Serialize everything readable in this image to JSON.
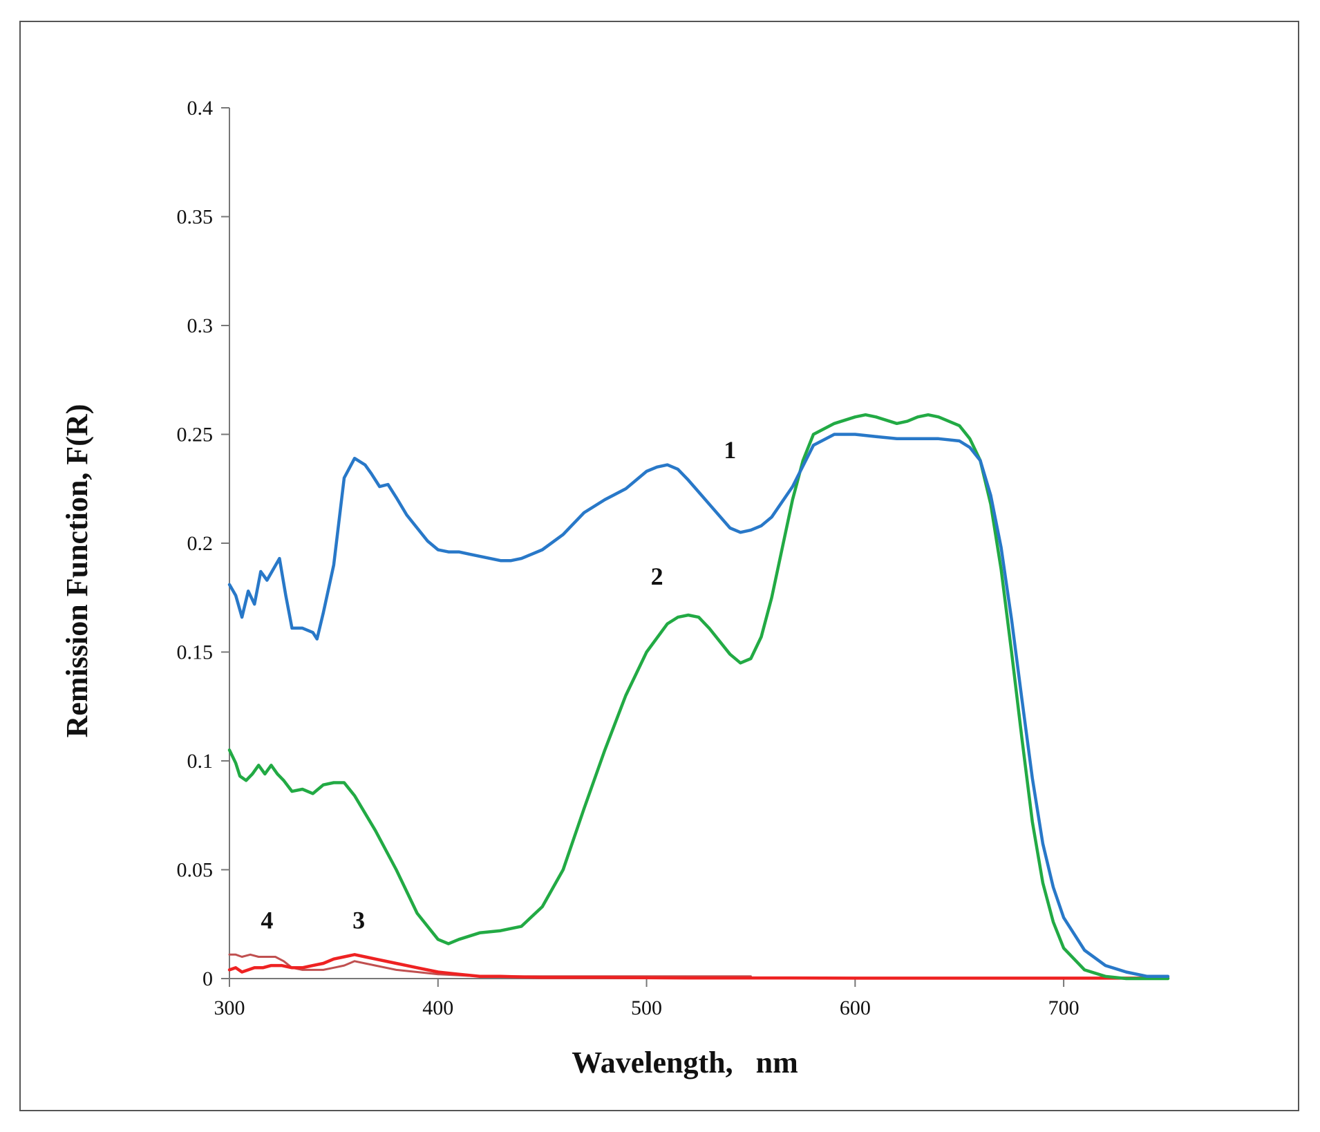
{
  "chart_data": {
    "type": "line",
    "xlabel": "Wavelength,   nm",
    "ylabel": "Remission Function, F(R)",
    "xlim": [
      300,
      750
    ],
    "ylim": [
      0,
      0.4
    ],
    "xticks": [
      300,
      400,
      500,
      600,
      700
    ],
    "xtick_labels": [
      "300",
      "400",
      "500",
      "600",
      "700"
    ],
    "yticks": [
      0,
      0.05,
      0.1,
      0.15,
      0.2,
      0.25,
      0.3,
      0.35,
      0.4
    ],
    "ytick_labels": [
      "0",
      "0.05",
      "0.1",
      "0.15",
      "0.2",
      "0.25",
      "0.3",
      "0.35",
      "0.4"
    ],
    "grid": false,
    "series": [
      {
        "name": "1",
        "color": "#2878c8",
        "x": [
          300,
          303,
          306,
          309,
          312,
          315,
          318,
          321,
          324,
          327,
          330,
          335,
          340,
          342,
          345,
          350,
          355,
          360,
          365,
          368,
          372,
          376,
          380,
          385,
          390,
          395,
          400,
          405,
          410,
          415,
          420,
          425,
          430,
          435,
          440,
          445,
          450,
          460,
          470,
          480,
          490,
          500,
          505,
          510,
          515,
          520,
          530,
          540,
          545,
          550,
          555,
          560,
          570,
          580,
          590,
          595,
          600,
          610,
          620,
          630,
          640,
          650,
          655,
          660,
          665,
          670,
          675,
          680,
          685,
          690,
          695,
          700,
          710,
          720,
          730,
          740,
          750
        ],
        "y": [
          0.181,
          0.176,
          0.166,
          0.178,
          0.172,
          0.187,
          0.183,
          0.188,
          0.193,
          0.176,
          0.161,
          0.161,
          0.159,
          0.156,
          0.168,
          0.19,
          0.23,
          0.239,
          0.236,
          0.232,
          0.226,
          0.227,
          0.221,
          0.213,
          0.207,
          0.201,
          0.197,
          0.196,
          0.196,
          0.195,
          0.194,
          0.193,
          0.192,
          0.192,
          0.193,
          0.195,
          0.197,
          0.204,
          0.214,
          0.22,
          0.225,
          0.233,
          0.235,
          0.236,
          0.234,
          0.229,
          0.218,
          0.207,
          0.205,
          0.206,
          0.208,
          0.212,
          0.226,
          0.245,
          0.25,
          0.25,
          0.25,
          0.249,
          0.248,
          0.248,
          0.248,
          0.247,
          0.244,
          0.238,
          0.222,
          0.198,
          0.165,
          0.128,
          0.092,
          0.062,
          0.042,
          0.028,
          0.013,
          0.006,
          0.003,
          0.001,
          0.001
        ]
      },
      {
        "name": "2",
        "color": "#22aa44",
        "x": [
          300,
          303,
          305,
          308,
          311,
          314,
          317,
          320,
          323,
          326,
          330,
          335,
          340,
          345,
          350,
          355,
          360,
          370,
          380,
          390,
          400,
          405,
          410,
          420,
          430,
          440,
          450,
          460,
          470,
          480,
          490,
          500,
          510,
          515,
          520,
          525,
          530,
          540,
          545,
          550,
          555,
          560,
          570,
          575,
          580,
          590,
          600,
          605,
          610,
          620,
          625,
          630,
          635,
          640,
          650,
          655,
          660,
          665,
          670,
          675,
          680,
          685,
          690,
          695,
          700,
          710,
          720,
          730,
          740,
          750
        ],
        "y": [
          0.105,
          0.099,
          0.093,
          0.091,
          0.094,
          0.098,
          0.094,
          0.098,
          0.094,
          0.091,
          0.086,
          0.087,
          0.085,
          0.089,
          0.09,
          0.09,
          0.084,
          0.068,
          0.05,
          0.03,
          0.018,
          0.016,
          0.018,
          0.021,
          0.022,
          0.024,
          0.033,
          0.05,
          0.078,
          0.105,
          0.13,
          0.15,
          0.163,
          0.166,
          0.167,
          0.166,
          0.161,
          0.149,
          0.145,
          0.147,
          0.157,
          0.175,
          0.22,
          0.238,
          0.25,
          0.255,
          0.258,
          0.259,
          0.258,
          0.255,
          0.256,
          0.258,
          0.259,
          0.258,
          0.254,
          0.248,
          0.238,
          0.218,
          0.188,
          0.15,
          0.11,
          0.072,
          0.044,
          0.026,
          0.014,
          0.004,
          0.001,
          0.0,
          0.0,
          0.0
        ],
        "y_note_removed": true
      },
      {
        "name": "3",
        "color": "#ee2222",
        "x": [
          300,
          303,
          306,
          309,
          312,
          316,
          320,
          325,
          330,
          335,
          340,
          345,
          350,
          355,
          360,
          365,
          370,
          380,
          390,
          400,
          410,
          420,
          430,
          450,
          480,
          520,
          560,
          600,
          650,
          700,
          750
        ],
        "y": [
          0.004,
          0.005,
          0.003,
          0.004,
          0.005,
          0.005,
          0.006,
          0.006,
          0.005,
          0.005,
          0.006,
          0.007,
          0.009,
          0.01,
          0.011,
          0.01,
          0.009,
          0.007,
          0.005,
          0.003,
          0.002,
          0.001,
          0.001,
          0.0005,
          0.0005,
          0.0003,
          0.0003,
          0.0002,
          0.0002,
          0.0002,
          0.0002
        ]
      },
      {
        "name": "4",
        "color": "#c05050",
        "x": [
          300,
          303,
          306,
          310,
          314,
          318,
          322,
          326,
          330,
          335,
          340,
          345,
          350,
          355,
          360,
          365,
          370,
          380,
          390,
          400,
          420,
          440,
          460,
          480,
          500,
          520,
          540,
          550
        ],
        "y": [
          0.011,
          0.011,
          0.01,
          0.011,
          0.01,
          0.01,
          0.01,
          0.008,
          0.005,
          0.004,
          0.004,
          0.004,
          0.005,
          0.006,
          0.008,
          0.007,
          0.006,
          0.004,
          0.003,
          0.002,
          0.001,
          0.001,
          0.001,
          0.001,
          0.001,
          0.001,
          0.001,
          0.001
        ]
      }
    ],
    "annotations": [
      {
        "text": "1",
        "x": 540,
        "y": 0.239
      },
      {
        "text": "2",
        "x": 505,
        "y": 0.181
      },
      {
        "text": "3",
        "x": 362,
        "y": 0.023
      },
      {
        "text": "4",
        "x": 318,
        "y": 0.023
      }
    ]
  }
}
